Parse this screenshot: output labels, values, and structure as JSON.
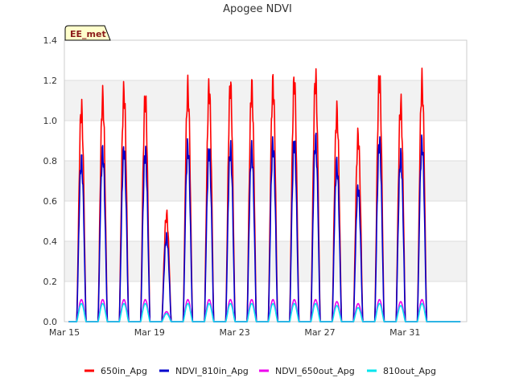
{
  "chart_data": {
    "type": "line",
    "title": "Apogee NDVI",
    "badge": "EE_met",
    "xlabel": "",
    "ylabel": "",
    "ylim": [
      0,
      1.4
    ],
    "yticks": [
      "0.0",
      "0.2",
      "0.4",
      "0.6",
      "0.8",
      "1.0",
      "1.2",
      "1.4"
    ],
    "xlim_days": [
      15,
      33.9
    ],
    "xticks": [
      {
        "day": 15,
        "label": "Mar 15"
      },
      {
        "day": 19,
        "label": "Mar 19"
      },
      {
        "day": 23,
        "label": "Mar 23"
      },
      {
        "day": 27,
        "label": "Mar 27"
      },
      {
        "day": 31,
        "label": "Mar 31"
      }
    ],
    "days": [
      15.8,
      16.8,
      17.8,
      18.8,
      19.8,
      20.8,
      21.8,
      22.8,
      23.8,
      24.8,
      25.8,
      26.8,
      27.8,
      28.8,
      29.8,
      30.8,
      31.8
    ],
    "series": [
      {
        "name": "650in_Apg",
        "color": "#ff0000",
        "peaks": [
          1.06,
          1.11,
          1.14,
          1.11,
          0.53,
          1.16,
          1.16,
          1.17,
          1.16,
          1.18,
          1.19,
          1.21,
          1.04,
          0.92,
          1.21,
          1.08,
          1.19
        ]
      },
      {
        "name": "NDVI_810in_Apg",
        "color": "#0000cc",
        "peaks": [
          0.8,
          0.84,
          0.85,
          0.84,
          0.42,
          0.87,
          0.85,
          0.86,
          0.85,
          0.88,
          0.89,
          0.9,
          0.78,
          0.66,
          0.89,
          0.82,
          0.89
        ]
      },
      {
        "name": "NDVI_650out_Apg",
        "color": "#ee00ee",
        "peaks": [
          0.11,
          0.11,
          0.11,
          0.11,
          0.05,
          0.11,
          0.11,
          0.11,
          0.11,
          0.11,
          0.11,
          0.11,
          0.1,
          0.09,
          0.11,
          0.1,
          0.11
        ]
      },
      {
        "name": "810out_Apg",
        "color": "#00e5ee",
        "peaks": [
          0.09,
          0.09,
          0.09,
          0.09,
          0.04,
          0.09,
          0.09,
          0.09,
          0.09,
          0.09,
          0.09,
          0.09,
          0.08,
          0.07,
          0.09,
          0.08,
          0.09
        ]
      }
    ]
  }
}
